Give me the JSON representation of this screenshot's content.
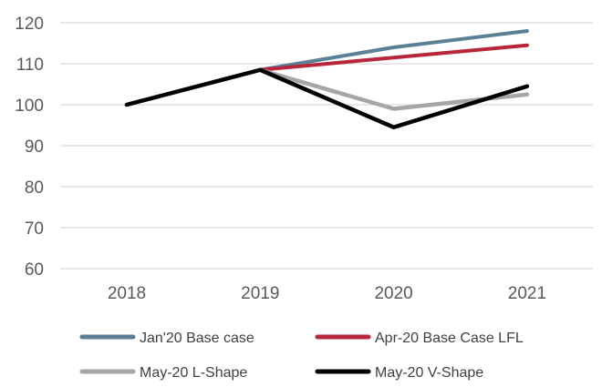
{
  "chart_data": {
    "type": "line",
    "title": "",
    "xlabel": "",
    "ylabel": "",
    "categories": [
      "2018",
      "2019",
      "2020",
      "2021"
    ],
    "ylim": [
      60,
      120
    ],
    "yticks": [
      60,
      70,
      80,
      90,
      100,
      110,
      120
    ],
    "grid": true,
    "legend_position": "bottom",
    "series": [
      {
        "name": "Jan'20 Base case",
        "color": "#5b7f95",
        "values": [
          100,
          108.5,
          114,
          118
        ]
      },
      {
        "name": "Apr-20 Base Case LFL",
        "color": "#b8263c",
        "values": [
          100,
          108.5,
          111.5,
          114.5
        ]
      },
      {
        "name": "May-20 L-Shape",
        "color": "#a6a6a6",
        "values": [
          100,
          108.5,
          99,
          102.5
        ]
      },
      {
        "name": "May-20 V-Shape",
        "color": "#000000",
        "values": [
          100,
          108.5,
          94.5,
          104.5
        ]
      }
    ]
  }
}
